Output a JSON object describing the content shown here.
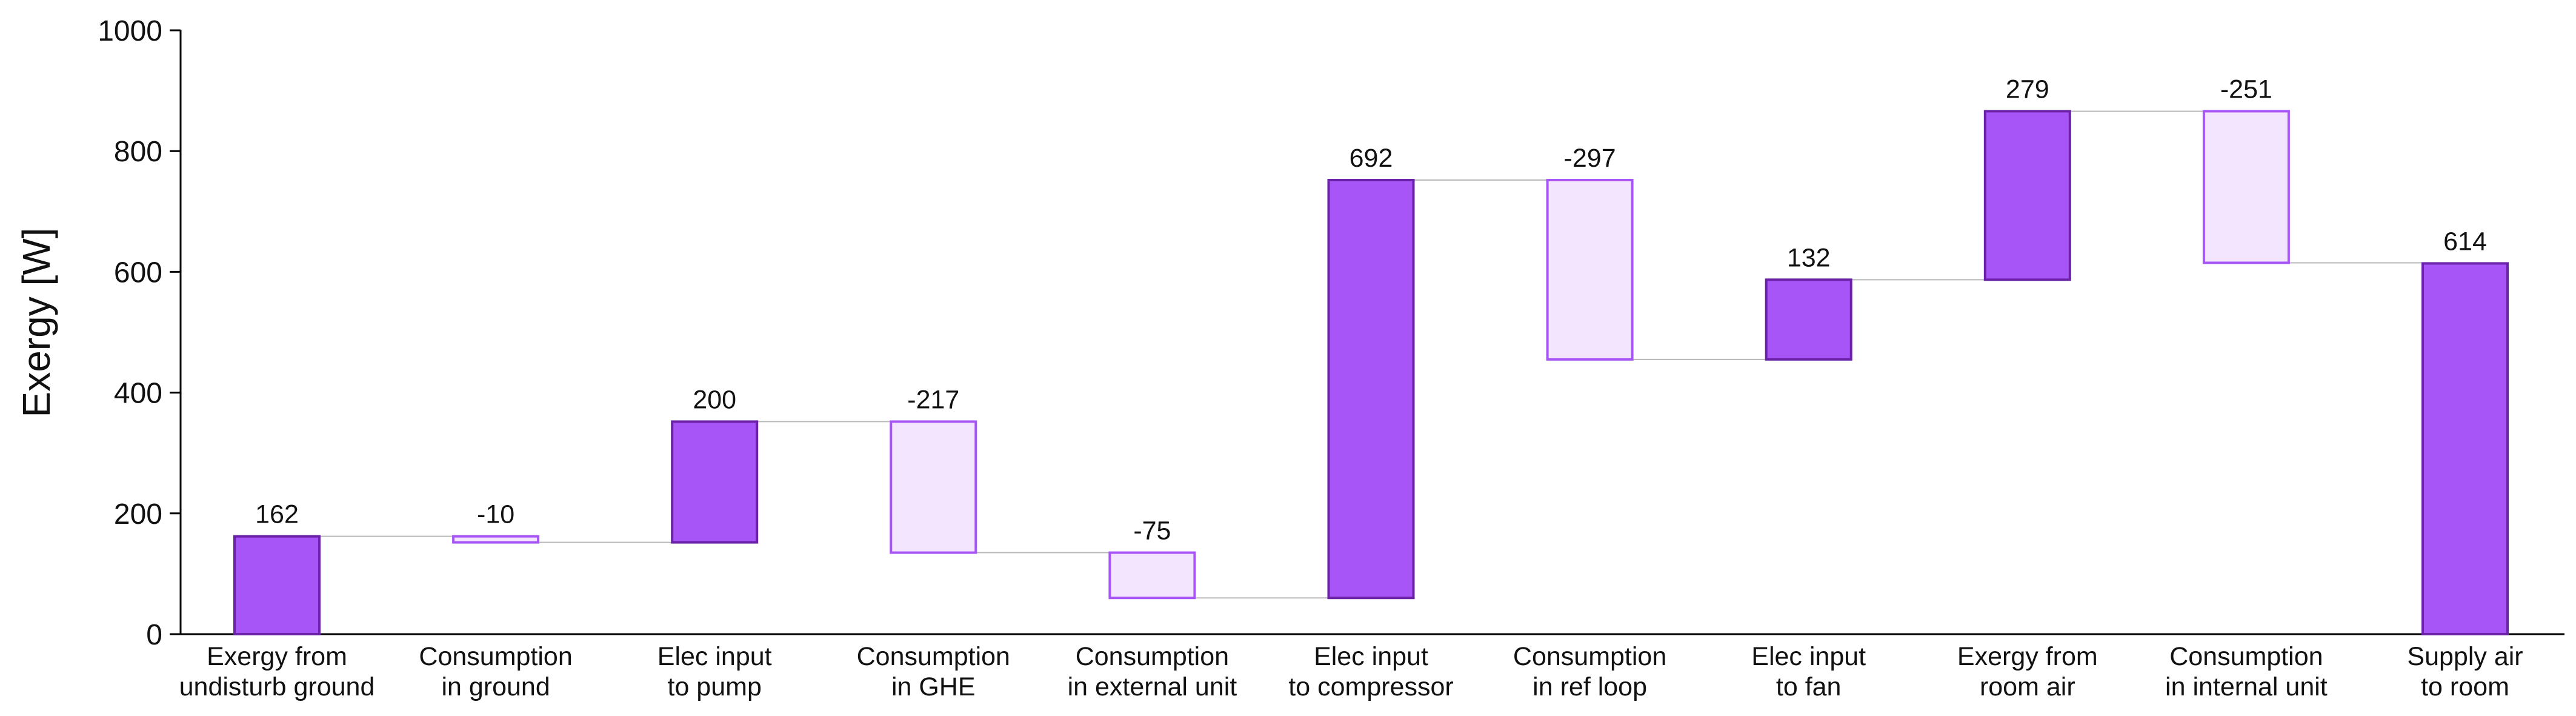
{
  "chart_data": {
    "type": "bar",
    "subtype": "waterfall",
    "ylabel": "Exergy [W]",
    "xlabel": "",
    "ylim": [
      0,
      1000
    ],
    "yticks": [
      0,
      200,
      400,
      600,
      800,
      1000
    ],
    "categories": [
      [
        "Exergy from",
        "undisturb ground"
      ],
      [
        "Consumption",
        "in ground"
      ],
      [
        "Elec input",
        "to pump"
      ],
      [
        "Consumption",
        "in GHE"
      ],
      [
        "Consumption",
        "in external unit"
      ],
      [
        "Elec input",
        "to compressor"
      ],
      [
        "Consumption",
        "in ref loop"
      ],
      [
        "Elec input",
        "to fan"
      ],
      [
        "Exergy from",
        "room air"
      ],
      [
        "Consumption",
        "in internal unit"
      ],
      [
        "Supply air",
        "to room"
      ]
    ],
    "values": [
      162,
      -10,
      200,
      -217,
      -75,
      692,
      -297,
      132,
      279,
      -251,
      614
    ],
    "value_labels": [
      "162",
      "-10",
      "200",
      "-217",
      "-75",
      "692",
      "-297",
      "132",
      "279",
      "-251",
      "614"
    ],
    "total_indices": [
      10
    ],
    "colors": {
      "positive_fill": "#a855f7",
      "positive_stroke": "#6b21a8",
      "negative_fill": "#f3e5fd",
      "negative_stroke": "#a855f7",
      "connector": "#b8b8b8"
    },
    "grid": false,
    "legend": "none"
  }
}
